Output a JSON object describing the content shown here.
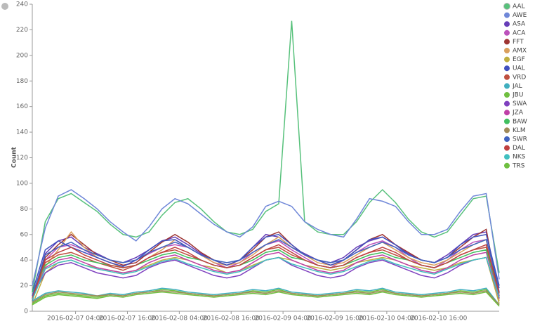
{
  "chart_data": {
    "type": "line",
    "y_label": "Count",
    "x": [
      "2016-02-06 18:00",
      "2016-02-06 21:00",
      "2016-02-07 00:00",
      "2016-02-07 03:00",
      "2016-02-07 06:00",
      "2016-02-07 09:00",
      "2016-02-07 12:00",
      "2016-02-07 15:00",
      "2016-02-07 18:00",
      "2016-02-07 21:00",
      "2016-02-08 00:00",
      "2016-02-08 03:00",
      "2016-02-08 06:00",
      "2016-02-08 09:00",
      "2016-02-08 12:00",
      "2016-02-08 15:00",
      "2016-02-08 18:00",
      "2016-02-08 21:00",
      "2016-02-09 00:00",
      "2016-02-09 03:00",
      "2016-02-09 06:00",
      "2016-02-09 09:00",
      "2016-02-09 12:00",
      "2016-02-09 15:00",
      "2016-02-09 18:00",
      "2016-02-09 21:00",
      "2016-02-10 00:00",
      "2016-02-10 03:00",
      "2016-02-10 06:00",
      "2016-02-10 09:00",
      "2016-02-10 12:00",
      "2016-02-10 15:00",
      "2016-02-10 18:00",
      "2016-02-10 21:00",
      "2016-02-11 00:00",
      "2016-02-11 03:00",
      "2016-02-11 06:00"
    ],
    "xlim": [
      "2016-02-06 18:00",
      "2016-02-11 06:00"
    ],
    "xticks": [
      "2016-02-07 04:00",
      "2016-02-07 16:00",
      "2016-02-08 04:00",
      "2016-02-08 16:00",
      "2016-02-09 04:00",
      "2016-02-09 16:00",
      "2016-02-10 04:00",
      "2016-02-10 16:00"
    ],
    "ylim": [
      0,
      240
    ],
    "yticks": [
      0,
      20,
      40,
      60,
      80,
      100,
      120,
      140,
      160,
      180,
      200,
      220,
      240
    ],
    "series": [
      {
        "name": "AAL",
        "color": "#57c17b",
        "values": [
          15,
          70,
          88,
          92,
          85,
          78,
          68,
          60,
          58,
          62,
          75,
          85,
          88,
          80,
          70,
          62,
          60,
          64,
          78,
          84,
          227,
          70,
          62,
          60,
          60,
          70,
          85,
          95,
          85,
          72,
          62,
          58,
          62,
          75,
          88,
          90,
          30
        ]
      },
      {
        "name": "AWE",
        "color": "#6f87d8",
        "values": [
          20,
          65,
          90,
          95,
          88,
          80,
          70,
          62,
          55,
          66,
          80,
          88,
          84,
          76,
          68,
          62,
          58,
          66,
          82,
          86,
          82,
          70,
          64,
          60,
          58,
          72,
          88,
          86,
          82,
          70,
          60,
          60,
          64,
          78,
          90,
          92,
          25
        ]
      },
      {
        "name": "ASA",
        "color": "#663db8",
        "values": [
          10,
          45,
          55,
          58,
          50,
          45,
          40,
          38,
          42,
          48,
          55,
          58,
          52,
          45,
          40,
          36,
          40,
          50,
          60,
          58,
          50,
          45,
          40,
          38,
          42,
          50,
          55,
          58,
          52,
          45,
          40,
          38,
          44,
          52,
          60,
          62,
          15
        ]
      },
      {
        "name": "ACA",
        "color": "#bc52bc",
        "values": [
          12,
          40,
          50,
          52,
          48,
          42,
          38,
          35,
          40,
          45,
          50,
          52,
          50,
          44,
          38,
          34,
          38,
          46,
          52,
          55,
          48,
          42,
          36,
          34,
          40,
          46,
          52,
          55,
          50,
          42,
          36,
          34,
          40,
          48,
          54,
          56,
          12
        ]
      },
      {
        "name": "FFT",
        "color": "#9e3533",
        "values": [
          8,
          42,
          52,
          60,
          52,
          44,
          40,
          36,
          38,
          46,
          54,
          60,
          54,
          46,
          40,
          36,
          40,
          48,
          58,
          62,
          52,
          44,
          40,
          36,
          40,
          48,
          56,
          60,
          52,
          46,
          40,
          38,
          42,
          50,
          58,
          64,
          10
        ]
      },
      {
        "name": "AMX",
        "color": "#daa05d",
        "values": [
          10,
          35,
          48,
          62,
          50,
          42,
          38,
          34,
          36,
          42,
          48,
          56,
          50,
          44,
          38,
          36,
          38,
          44,
          52,
          58,
          50,
          44,
          38,
          36,
          38,
          44,
          50,
          54,
          48,
          42,
          38,
          36,
          40,
          46,
          52,
          56,
          8
        ]
      },
      {
        "name": "EGF",
        "color": "#bfaf40",
        "values": [
          5,
          30,
          38,
          40,
          36,
          34,
          32,
          30,
          32,
          36,
          40,
          42,
          40,
          36,
          34,
          30,
          32,
          36,
          40,
          42,
          40,
          36,
          34,
          32,
          34,
          38,
          40,
          42,
          40,
          36,
          34,
          32,
          34,
          38,
          40,
          42,
          6
        ]
      },
      {
        "name": "UAL",
        "color": "#4050bf",
        "values": [
          15,
          48,
          55,
          50,
          46,
          42,
          38,
          35,
          40,
          48,
          55,
          56,
          50,
          44,
          40,
          36,
          40,
          50,
          58,
          60,
          52,
          44,
          40,
          36,
          40,
          48,
          56,
          58,
          52,
          44,
          40,
          38,
          42,
          52,
          58,
          60,
          20
        ]
      },
      {
        "name": "VRD",
        "color": "#bf5040",
        "values": [
          10,
          38,
          44,
          46,
          42,
          38,
          35,
          32,
          36,
          42,
          46,
          48,
          44,
          40,
          36,
          34,
          36,
          42,
          48,
          50,
          44,
          40,
          36,
          34,
          36,
          42,
          46,
          48,
          44,
          40,
          36,
          34,
          38,
          44,
          48,
          50,
          12
        ]
      },
      {
        "name": "JAL",
        "color": "#40afbf",
        "values": [
          8,
          14,
          16,
          15,
          14,
          12,
          14,
          13,
          15,
          16,
          18,
          17,
          15,
          14,
          13,
          14,
          15,
          17,
          16,
          18,
          15,
          14,
          13,
          14,
          15,
          17,
          16,
          18,
          15,
          14,
          13,
          14,
          15,
          17,
          16,
          18,
          5
        ]
      },
      {
        "name": "JBU",
        "color": "#70bf40",
        "values": [
          6,
          12,
          14,
          13,
          12,
          11,
          13,
          12,
          14,
          15,
          17,
          16,
          14,
          13,
          12,
          13,
          14,
          16,
          15,
          17,
          14,
          13,
          12,
          13,
          14,
          16,
          15,
          17,
          14,
          13,
          12,
          13,
          14,
          16,
          15,
          17,
          4
        ]
      },
      {
        "name": "SWA",
        "color": "#7f40bf",
        "values": [
          12,
          30,
          36,
          38,
          34,
          30,
          28,
          26,
          28,
          34,
          38,
          40,
          36,
          32,
          28,
          26,
          28,
          34,
          40,
          42,
          36,
          32,
          28,
          26,
          28,
          34,
          38,
          40,
          36,
          32,
          28,
          26,
          30,
          36,
          40,
          42,
          10
        ]
      },
      {
        "name": "JZA",
        "color": "#bf40a7",
        "values": [
          10,
          34,
          40,
          42,
          38,
          34,
          32,
          30,
          32,
          38,
          42,
          44,
          40,
          36,
          32,
          30,
          32,
          38,
          44,
          46,
          40,
          36,
          32,
          30,
          32,
          38,
          42,
          44,
          40,
          36,
          32,
          30,
          34,
          40,
          44,
          46,
          12
        ]
      },
      {
        "name": "BAW",
        "color": "#40bf5f",
        "values": [
          15,
          36,
          42,
          44,
          40,
          38,
          36,
          34,
          36,
          40,
          44,
          46,
          42,
          40,
          36,
          34,
          36,
          40,
          46,
          48,
          42,
          40,
          36,
          34,
          36,
          40,
          44,
          46,
          42,
          40,
          36,
          34,
          38,
          42,
          46,
          48,
          14
        ]
      },
      {
        "name": "KLM",
        "color": "#a08a59",
        "values": [
          7,
          13,
          15,
          14,
          13,
          12,
          13,
          12,
          14,
          15,
          16,
          15,
          14,
          13,
          12,
          13,
          14,
          15,
          14,
          16,
          14,
          13,
          12,
          13,
          14,
          15,
          14,
          16,
          14,
          13,
          12,
          13,
          14,
          15,
          14,
          16,
          5
        ]
      },
      {
        "name": "SWR",
        "color": "#4063bf",
        "values": [
          12,
          44,
          50,
          54,
          48,
          44,
          40,
          38,
          40,
          46,
          50,
          54,
          50,
          44,
          40,
          38,
          40,
          46,
          52,
          56,
          50,
          44,
          40,
          38,
          40,
          46,
          50,
          54,
          50,
          44,
          40,
          38,
          42,
          48,
          52,
          56,
          18
        ]
      },
      {
        "name": "DAL",
        "color": "#bf4040",
        "values": [
          10,
          40,
          46,
          50,
          44,
          40,
          36,
          34,
          36,
          42,
          46,
          50,
          46,
          40,
          36,
          34,
          36,
          42,
          48,
          52,
          46,
          40,
          36,
          34,
          36,
          42,
          46,
          50,
          46,
          40,
          36,
          34,
          38,
          44,
          48,
          52,
          14
        ]
      },
      {
        "name": "NKS",
        "color": "#40bfbf",
        "values": [
          9,
          33,
          38,
          40,
          36,
          33,
          31,
          29,
          31,
          35,
          39,
          41,
          37,
          34,
          31,
          29,
          31,
          35,
          40,
          42,
          37,
          34,
          31,
          29,
          31,
          35,
          39,
          41,
          37,
          34,
          31,
          29,
          33,
          37,
          40,
          42,
          11
        ]
      },
      {
        "name": "TRS",
        "color": "#6fbf40",
        "values": [
          5,
          11,
          13,
          12,
          11,
          10,
          12,
          11,
          13,
          14,
          15,
          14,
          13,
          12,
          11,
          12,
          13,
          14,
          13,
          15,
          13,
          12,
          11,
          12,
          13,
          14,
          13,
          15,
          13,
          12,
          11,
          12,
          13,
          14,
          13,
          15,
          4
        ]
      }
    ]
  }
}
